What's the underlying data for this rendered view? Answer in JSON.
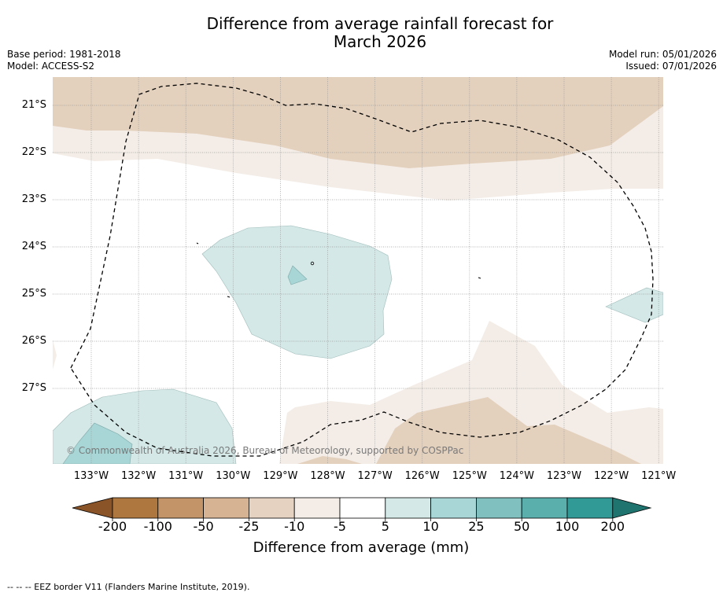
{
  "title": {
    "line1": "Difference from average rainfall forecast for",
    "line2": "March 2026"
  },
  "meta": {
    "base_period": "Base period: 1981-2018",
    "model": "Model: ACCESS-S2",
    "model_run": "Model run: 05/01/2026",
    "issued": "Issued: 07/01/2026"
  },
  "map": {
    "latitude_labels": [
      "21°S",
      "22°S",
      "23°S",
      "24°S",
      "25°S",
      "26°S",
      "27°S"
    ],
    "longitude_labels": [
      "133°W",
      "132°W",
      "131°W",
      "130°W",
      "129°W",
      "128°W",
      "127°W",
      "126°W",
      "125°W",
      "124°W",
      "123°W",
      "122°W",
      "121°W"
    ],
    "copyright": "© Commonwealth of Australia 2026, Bureau of Meteorology, supported by COSPPac"
  },
  "colorbar": {
    "tick_labels": [
      "-200",
      "-100",
      "-50",
      "-25",
      "-10",
      "-5",
      "5",
      "10",
      "25",
      "50",
      "100",
      "200"
    ],
    "colors": [
      "#8a5328",
      "#ad773f",
      "#c39468",
      "#d6b393",
      "#e5d2c0",
      "#f4ede7",
      "#ffffff",
      "#d3e8e7",
      "#a8d5d5",
      "#80c1bf",
      "#5aaeac",
      "#319996",
      "#1f7470"
    ],
    "label": "Difference from average (mm)"
  },
  "footnote": "--  --  -- EEZ border V11 (Flanders Marine Institute, 2019)."
}
